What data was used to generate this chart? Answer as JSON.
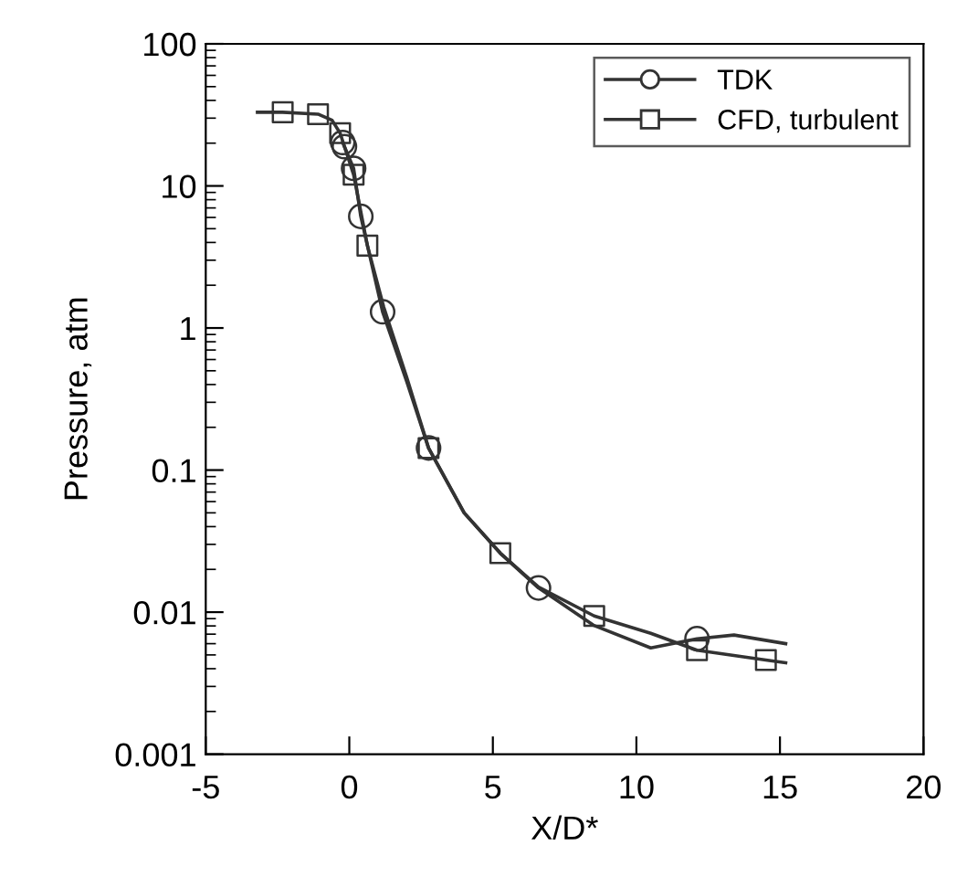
{
  "chart_data": {
    "type": "line",
    "xlabel": "X/D*",
    "ylabel": "Pressure, atm",
    "log": "y",
    "xlim": [
      -5,
      20
    ],
    "xticks": [
      -5,
      0,
      5,
      10,
      15,
      20
    ],
    "ylim": [
      0.001,
      100
    ],
    "yticks": [
      {
        "value": 0.001,
        "label": "0.001"
      },
      {
        "value": 0.01,
        "label": "0.01"
      },
      {
        "value": 0.1,
        "label": "0.1"
      },
      {
        "value": 1,
        "label": "1"
      },
      {
        "value": 10,
        "label": "10"
      },
      {
        "value": 100,
        "label": "100"
      }
    ],
    "grid": false,
    "legend": "top right",
    "series": [
      {
        "color": "#333333",
        "marker": "none",
        "x": [
          -0.23,
          -0.17,
          0.15,
          0.4,
          1.16,
          2,
          2.76,
          4,
          5.26,
          6.59,
          8.5,
          10.5,
          12.11,
          13.4,
          15.2
        ],
        "values": [
          20.2,
          18.9,
          13.3,
          6.1,
          1.3,
          0.42,
          0.143,
          0.05,
          0.026,
          0.0148,
          0.0081,
          0.0056,
          0.0065,
          0.0069,
          0.006
        ]
      },
      {
        "color": "#333333",
        "marker": "none",
        "x": [
          -3.2,
          -2.32,
          -1.09,
          -0.6,
          -0.32,
          0.15,
          0.63,
          1.2,
          2,
          2.76,
          4,
          5.26,
          6.59,
          8.53,
          10.5,
          12.11,
          14.51,
          15.2
        ],
        "values": [
          33,
          33,
          32,
          29,
          23.5,
          12,
          3.8,
          1.4,
          0.45,
          0.143,
          0.05,
          0.026,
          0.015,
          0.0094,
          0.0071,
          0.0054,
          0.0046,
          0.0044
        ]
      },
      {
        "type": "scatter",
        "name": "TDK",
        "color": "#333333",
        "marker": "circle",
        "x": [
          -0.23,
          -0.17,
          0.15,
          0.4,
          1.16,
          2.76,
          6.59,
          12.11
        ],
        "values": [
          20.2,
          18.9,
          13.3,
          6.1,
          1.3,
          0.143,
          0.0148,
          0.0065
        ]
      },
      {
        "type": "scatter",
        "name": "CFD, turbulent",
        "color": "#333333",
        "marker": "square",
        "x": [
          -2.32,
          -1.09,
          -0.32,
          0.15,
          0.63,
          2.76,
          5.26,
          8.53,
          12.11,
          14.51
        ],
        "values": [
          33,
          32,
          23.5,
          12,
          3.8,
          0.143,
          0.026,
          0.0094,
          0.0054,
          0.0046
        ]
      }
    ]
  }
}
